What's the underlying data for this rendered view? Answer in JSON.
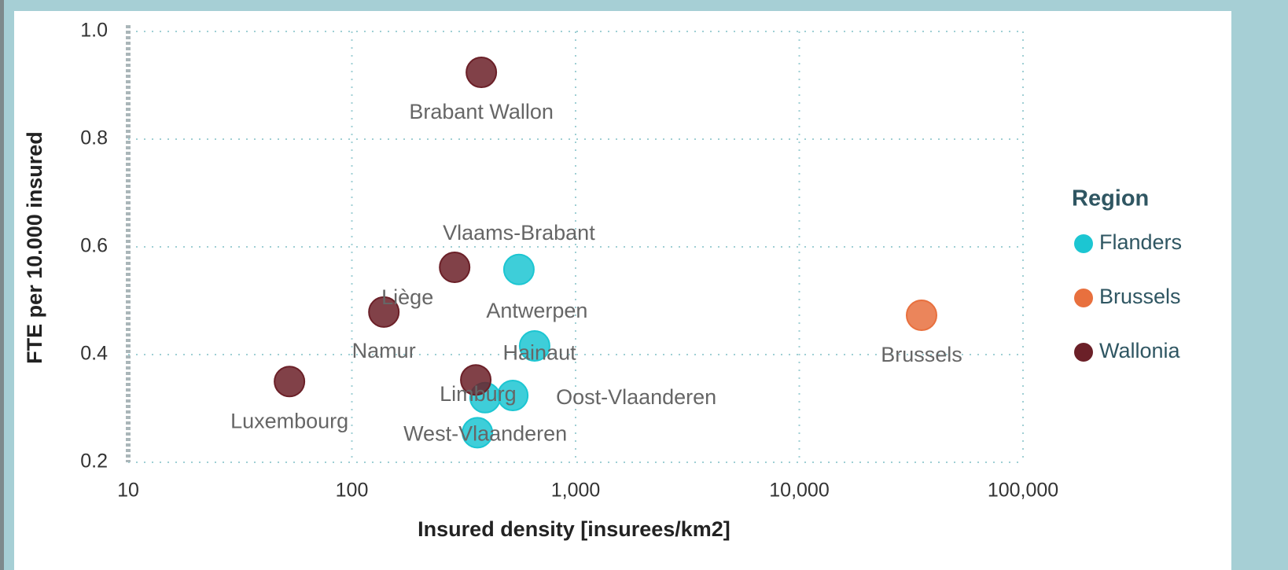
{
  "chart_data": {
    "type": "scatter",
    "x_label": "Insured density [insurees/km2]",
    "y_label": "FTE per 10.000 insured",
    "legend_title": "Region",
    "legend": "right",
    "xscale": "log",
    "grid": true,
    "xlim": [
      10,
      100000
    ],
    "xticks": [
      10,
      100,
      {
        "value": 1000,
        "label": "1,000"
      },
      {
        "value": 10000,
        "label": "10,000"
      },
      {
        "value": 100000,
        "label": "100,000"
      }
    ],
    "ylim": [
      0.2,
      1
    ],
    "yticks": [
      0.2,
      0.4,
      0.6,
      0.8,
      {
        "value": 1,
        "label": "1.0"
      }
    ],
    "series": [
      {
        "name": "Flanders",
        "color": "#1cc6d2",
        "labels": [
          "Vlaams-Brabant",
          "Antwerpen",
          "Limburg",
          "Oost-Vlaanderen",
          "West-Vlaanderen"
        ],
        "x": [
          558,
          656,
          394,
          524,
          364
        ],
        "values": [
          0.558,
          0.416,
          0.32,
          0.324,
          0.255
        ]
      },
      {
        "name": "Brussels",
        "color": "#e8703e",
        "labels": [
          "Brussels"
        ],
        "x": [
          35200
        ],
        "values": [
          0.473
        ]
      },
      {
        "name": "Wallonia",
        "color": "#6b2028",
        "labels": [
          "Brabant Wallon",
          "Liège",
          "Namur",
          "Hainaut",
          "Luxembourg"
        ],
        "x": [
          379,
          288,
          139,
          358,
          52.6
        ],
        "values": [
          0.924,
          0.562,
          0.479,
          0.353,
          0.35
        ]
      }
    ]
  }
}
